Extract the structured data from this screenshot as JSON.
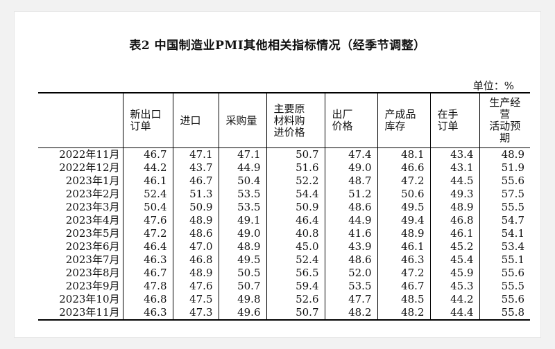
{
  "title": "表2 中国制造业PMI其他相关指标情况（经季节调整）",
  "unit": "单位：%",
  "columns": [
    [
      "新出口",
      "订单"
    ],
    [
      "进口"
    ],
    [
      "采购量"
    ],
    [
      "主要原",
      "材料购",
      "进价格"
    ],
    [
      "出厂",
      "价格"
    ],
    [
      "产成品",
      "库存"
    ],
    [
      "在手",
      "订单"
    ],
    [
      "生产经",
      "营",
      "活动预",
      "期"
    ]
  ],
  "rows": [
    {
      "month": "2022年11月",
      "values": [
        "46.7",
        "47.1",
        "47.1",
        "50.7",
        "47.4",
        "48.1",
        "43.4",
        "48.9"
      ]
    },
    {
      "month": "2022年12月",
      "values": [
        "44.2",
        "43.7",
        "44.9",
        "51.6",
        "49.0",
        "46.6",
        "43.1",
        "51.9"
      ]
    },
    {
      "month": "2023年1月",
      "values": [
        "46.1",
        "46.7",
        "50.4",
        "52.2",
        "48.7",
        "47.2",
        "44.5",
        "55.6"
      ]
    },
    {
      "month": "2023年2月",
      "values": [
        "52.4",
        "51.3",
        "53.5",
        "54.4",
        "51.2",
        "50.6",
        "49.3",
        "57.5"
      ]
    },
    {
      "month": "2023年3月",
      "values": [
        "50.4",
        "50.9",
        "53.5",
        "50.9",
        "48.6",
        "49.5",
        "48.9",
        "55.5"
      ]
    },
    {
      "month": "2023年4月",
      "values": [
        "47.6",
        "48.9",
        "49.1",
        "46.4",
        "44.9",
        "49.4",
        "46.8",
        "54.7"
      ]
    },
    {
      "month": "2023年5月",
      "values": [
        "47.2",
        "48.6",
        "49.0",
        "40.8",
        "41.6",
        "48.9",
        "46.1",
        "54.1"
      ]
    },
    {
      "month": "2023年6月",
      "values": [
        "46.4",
        "47.0",
        "48.9",
        "45.0",
        "43.9",
        "46.1",
        "45.2",
        "53.4"
      ]
    },
    {
      "month": "2023年7月",
      "values": [
        "46.3",
        "46.8",
        "49.5",
        "52.4",
        "48.6",
        "46.3",
        "45.4",
        "55.1"
      ]
    },
    {
      "month": "2023年8月",
      "values": [
        "46.7",
        "48.9",
        "50.5",
        "56.5",
        "52.0",
        "47.2",
        "45.9",
        "55.6"
      ]
    },
    {
      "month": "2023年9月",
      "values": [
        "47.8",
        "47.6",
        "50.7",
        "59.4",
        "53.5",
        "46.7",
        "45.3",
        "55.5"
      ]
    },
    {
      "month": "2023年10月",
      "values": [
        "46.8",
        "47.5",
        "49.8",
        "52.6",
        "47.7",
        "48.5",
        "44.2",
        "55.6"
      ]
    },
    {
      "month": "2023年11月",
      "values": [
        "46.3",
        "47.3",
        "49.6",
        "50.7",
        "48.2",
        "48.2",
        "44.4",
        "55.8"
      ]
    }
  ]
}
